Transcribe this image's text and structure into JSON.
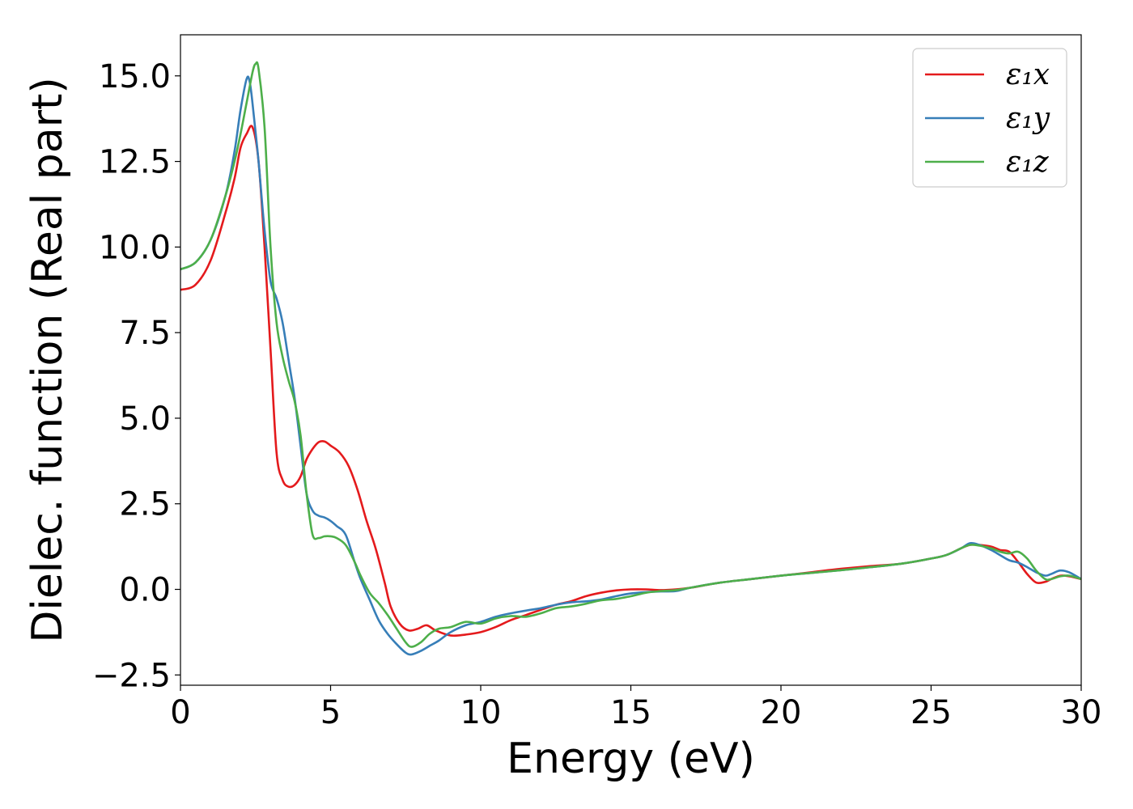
{
  "chart_data": {
    "type": "line",
    "title": "",
    "xlabel": "Energy (eV)",
    "ylabel": "Dielec. function (Real part)",
    "xlim": [
      0,
      30
    ],
    "ylim": [
      -2.8,
      16.2
    ],
    "xticks": [
      0,
      5,
      10,
      15,
      20,
      25,
      30
    ],
    "xtick_labels": [
      "0",
      "5",
      "10",
      "15",
      "20",
      "25",
      "30"
    ],
    "yticks": [
      -2.5,
      0.0,
      2.5,
      5.0,
      7.5,
      10.0,
      12.5,
      15.0
    ],
    "ytick_labels": [
      "−2.5",
      "0.0",
      "2.5",
      "5.0",
      "7.5",
      "10.0",
      "12.5",
      "15.0"
    ],
    "grid": false,
    "legend_position": "top-right",
    "series": [
      {
        "name": "ε₁x",
        "color": "#e41a1c",
        "x": [
          0,
          0.5,
          1.0,
          1.5,
          1.8,
          2.0,
          2.2,
          2.4,
          2.6,
          2.8,
          3.0,
          3.2,
          3.4,
          3.6,
          3.8,
          4.0,
          4.2,
          4.4,
          4.6,
          4.8,
          5.0,
          5.3,
          5.6,
          5.9,
          6.2,
          6.5,
          6.8,
          7.0,
          7.3,
          7.6,
          7.9,
          8.2,
          8.5,
          9.0,
          9.5,
          10.0,
          10.5,
          11.0,
          11.5,
          12.0,
          12.5,
          13.0,
          13.5,
          14.0,
          14.5,
          15.0,
          15.5,
          16.0,
          16.5,
          17.0,
          18.0,
          19.0,
          20.0,
          21.0,
          22.0,
          23.0,
          24.0,
          25.0,
          25.5,
          26.0,
          26.3,
          26.6,
          27.0,
          27.3,
          27.6,
          27.9,
          28.2,
          28.5,
          28.8,
          29.0,
          29.3,
          29.6,
          30.0
        ],
        "y": [
          8.75,
          8.9,
          9.6,
          11.0,
          12.0,
          12.9,
          13.3,
          13.5,
          12.5,
          10.0,
          7.0,
          4.0,
          3.2,
          3.0,
          3.05,
          3.3,
          3.8,
          4.1,
          4.3,
          4.32,
          4.2,
          4.0,
          3.6,
          2.9,
          2.0,
          1.2,
          0.2,
          -0.5,
          -1.0,
          -1.2,
          -1.15,
          -1.05,
          -1.2,
          -1.35,
          -1.32,
          -1.25,
          -1.1,
          -0.9,
          -0.75,
          -0.6,
          -0.45,
          -0.35,
          -0.2,
          -0.1,
          -0.03,
          0.0,
          0.0,
          -0.02,
          0.0,
          0.05,
          0.2,
          0.3,
          0.4,
          0.5,
          0.6,
          0.68,
          0.75,
          0.9,
          1.0,
          1.2,
          1.3,
          1.3,
          1.25,
          1.15,
          1.1,
          0.8,
          0.45,
          0.2,
          0.22,
          0.3,
          0.4,
          0.38,
          0.3
        ]
      },
      {
        "name": "ε₁y",
        "color": "#377eb8",
        "x": [
          0,
          0.5,
          1.0,
          1.5,
          1.8,
          2.0,
          2.2,
          2.3,
          2.4,
          2.6,
          2.8,
          3.0,
          3.2,
          3.4,
          3.6,
          3.8,
          4.0,
          4.2,
          4.4,
          4.6,
          4.8,
          5.0,
          5.2,
          5.5,
          5.8,
          6.0,
          6.3,
          6.6,
          6.9,
          7.2,
          7.5,
          7.7,
          8.0,
          8.3,
          8.6,
          9.0,
          9.5,
          10.0,
          10.5,
          11.0,
          11.5,
          12.0,
          12.5,
          13.0,
          13.5,
          14.0,
          14.5,
          15.0,
          15.5,
          16.0,
          16.5,
          17.0,
          18.0,
          19.0,
          20.0,
          21.0,
          22.0,
          23.0,
          24.0,
          25.0,
          25.5,
          26.0,
          26.3,
          26.6,
          27.0,
          27.3,
          27.6,
          27.9,
          28.2,
          28.5,
          28.8,
          29.0,
          29.3,
          29.6,
          30.0
        ],
        "y": [
          9.35,
          9.55,
          10.2,
          11.5,
          12.8,
          14.0,
          14.9,
          14.85,
          14.2,
          12.5,
          10.5,
          9.0,
          8.5,
          7.8,
          6.7,
          5.6,
          4.2,
          2.8,
          2.3,
          2.15,
          2.1,
          2.0,
          1.85,
          1.6,
          0.8,
          0.3,
          -0.3,
          -0.9,
          -1.3,
          -1.6,
          -1.85,
          -1.9,
          -1.8,
          -1.65,
          -1.5,
          -1.25,
          -1.05,
          -0.95,
          -0.8,
          -0.7,
          -0.62,
          -0.55,
          -0.45,
          -0.38,
          -0.35,
          -0.3,
          -0.2,
          -0.12,
          -0.08,
          -0.06,
          -0.05,
          0.05,
          0.2,
          0.3,
          0.4,
          0.48,
          0.56,
          0.65,
          0.75,
          0.9,
          1.0,
          1.2,
          1.35,
          1.3,
          1.15,
          1.0,
          0.85,
          0.78,
          0.65,
          0.5,
          0.4,
          0.45,
          0.55,
          0.5,
          0.3
        ]
      },
      {
        "name": "ε₁z",
        "color": "#4daf4a",
        "x": [
          0,
          0.5,
          1.0,
          1.5,
          1.8,
          2.0,
          2.2,
          2.4,
          2.5,
          2.6,
          2.8,
          3.0,
          3.2,
          3.4,
          3.6,
          3.8,
          4.0,
          4.2,
          4.4,
          4.6,
          4.8,
          5.0,
          5.2,
          5.5,
          5.8,
          6.0,
          6.3,
          6.6,
          6.9,
          7.2,
          7.5,
          7.7,
          8.0,
          8.3,
          8.6,
          9.0,
          9.5,
          10.0,
          10.5,
          11.0,
          11.5,
          12.0,
          12.5,
          13.0,
          13.5,
          14.0,
          14.5,
          15.0,
          15.5,
          16.0,
          16.5,
          17.0,
          18.0,
          19.0,
          20.0,
          21.0,
          22.0,
          23.0,
          24.0,
          25.0,
          25.5,
          26.0,
          26.3,
          26.6,
          27.0,
          27.3,
          27.6,
          27.9,
          28.2,
          28.5,
          28.8,
          29.0,
          29.3,
          29.6,
          30.0
        ],
        "y": [
          9.35,
          9.55,
          10.2,
          11.5,
          12.5,
          13.3,
          14.2,
          15.1,
          15.35,
          15.2,
          13.5,
          10.0,
          7.8,
          6.8,
          6.1,
          5.5,
          4.5,
          2.8,
          1.6,
          1.5,
          1.55,
          1.55,
          1.5,
          1.3,
          0.8,
          0.4,
          -0.1,
          -0.4,
          -0.75,
          -1.15,
          -1.55,
          -1.68,
          -1.55,
          -1.3,
          -1.15,
          -1.1,
          -0.95,
          -1.0,
          -0.85,
          -0.78,
          -0.8,
          -0.7,
          -0.55,
          -0.5,
          -0.42,
          -0.32,
          -0.28,
          -0.2,
          -0.1,
          -0.05,
          -0.02,
          0.05,
          0.2,
          0.3,
          0.4,
          0.48,
          0.56,
          0.65,
          0.75,
          0.9,
          1.0,
          1.2,
          1.3,
          1.28,
          1.2,
          1.1,
          1.05,
          1.1,
          0.9,
          0.55,
          0.3,
          0.3,
          0.38,
          0.4,
          0.3
        ]
      }
    ]
  }
}
